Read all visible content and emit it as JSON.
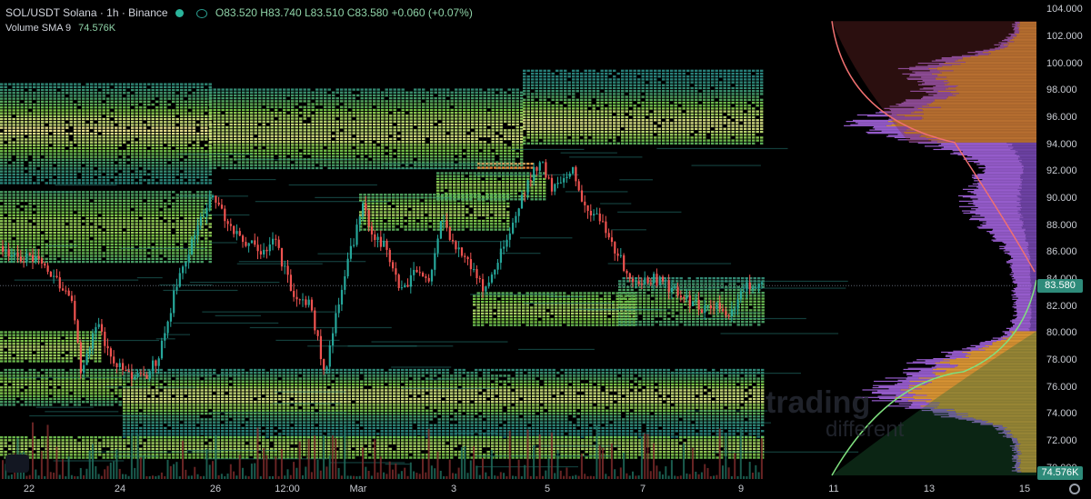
{
  "legend": {
    "symbol": "SOL/USDT Solana · 1h · Binance",
    "open": "O83.520",
    "high": "H83.740",
    "low": "L83.510",
    "close": "C83.580",
    "change": "+0.060 (+0.07%)",
    "volume_label": "Volume SMA 9",
    "volume_value": "74.576K"
  },
  "price_axis": {
    "ticks": [
      "104.000",
      "102.000",
      "100.000",
      "98.000",
      "96.000",
      "94.000",
      "92.000",
      "90.000",
      "88.000",
      "86.000",
      "84.000",
      "82.000",
      "80.000",
      "78.000",
      "76.000",
      "74.000",
      "72.000",
      "70.000"
    ],
    "last_price": "83.580",
    "volume_tag": "74.576K"
  },
  "time_axis": {
    "ticks": [
      "22",
      "24",
      "26",
      "12:00",
      "Mar",
      "3",
      "5",
      "7",
      "9",
      "11",
      "13",
      "15"
    ]
  },
  "watermark": {
    "line1": "trading",
    "line2": "different"
  },
  "colors": {
    "up": "#26a69a",
    "down": "#ef5350",
    "heat_low": "#2b8c86",
    "heat_mid": "#7fd14a",
    "heat_high": "#fff59d",
    "profile_orange": "#f0a43a",
    "profile_purple": "#b06cf0",
    "price_tag": "#2e8b7a"
  },
  "chart_data": {
    "type": "candlestick",
    "symbol": "SOL/USDT",
    "interval": "1h",
    "exchange": "Binance",
    "ylim": [
      69.5,
      104.5
    ],
    "last_close": 83.58,
    "price_path": [
      [
        0,
        86.5
      ],
      [
        20,
        85.8
      ],
      [
        40,
        85.3
      ],
      [
        60,
        84.2
      ],
      [
        80,
        81.8
      ],
      [
        88,
        77.3
      ],
      [
        100,
        79.5
      ],
      [
        108,
        80.6
      ],
      [
        120,
        78.4
      ],
      [
        140,
        76.8
      ],
      [
        158,
        76.6
      ],
      [
        175,
        78.6
      ],
      [
        192,
        83.3
      ],
      [
        210,
        86.7
      ],
      [
        222,
        88.8
      ],
      [
        232,
        90.3
      ],
      [
        245,
        88.6
      ],
      [
        262,
        87.2
      ],
      [
        275,
        86.7
      ],
      [
        290,
        86.1
      ],
      [
        300,
        87.3
      ],
      [
        312,
        84.7
      ],
      [
        325,
        82.6
      ],
      [
        340,
        82.4
      ],
      [
        356,
        77.1
      ],
      [
        368,
        81.0
      ],
      [
        383,
        85.7
      ],
      [
        398,
        89.3
      ],
      [
        410,
        87.3
      ],
      [
        425,
        86.2
      ],
      [
        440,
        83.0
      ],
      [
        455,
        84.8
      ],
      [
        470,
        83.6
      ],
      [
        485,
        88.6
      ],
      [
        498,
        86.8
      ],
      [
        512,
        85.6
      ],
      [
        530,
        83.4
      ],
      [
        545,
        85.3
      ],
      [
        558,
        87.0
      ],
      [
        575,
        90.3
      ],
      [
        593,
        93.0
      ],
      [
        605,
        90.8
      ],
      [
        628,
        92.2
      ],
      [
        640,
        89.6
      ],
      [
        660,
        88.3
      ],
      [
        675,
        86.4
      ],
      [
        690,
        84.2
      ],
      [
        705,
        84.1
      ],
      [
        725,
        84.0
      ],
      [
        745,
        82.9
      ],
      [
        760,
        82.2
      ],
      [
        775,
        81.9
      ],
      [
        790,
        81.9
      ],
      [
        805,
        81.5
      ],
      [
        820,
        83.6
      ],
      [
        830,
        83.8
      ],
      [
        838,
        83.58
      ]
    ]
  }
}
